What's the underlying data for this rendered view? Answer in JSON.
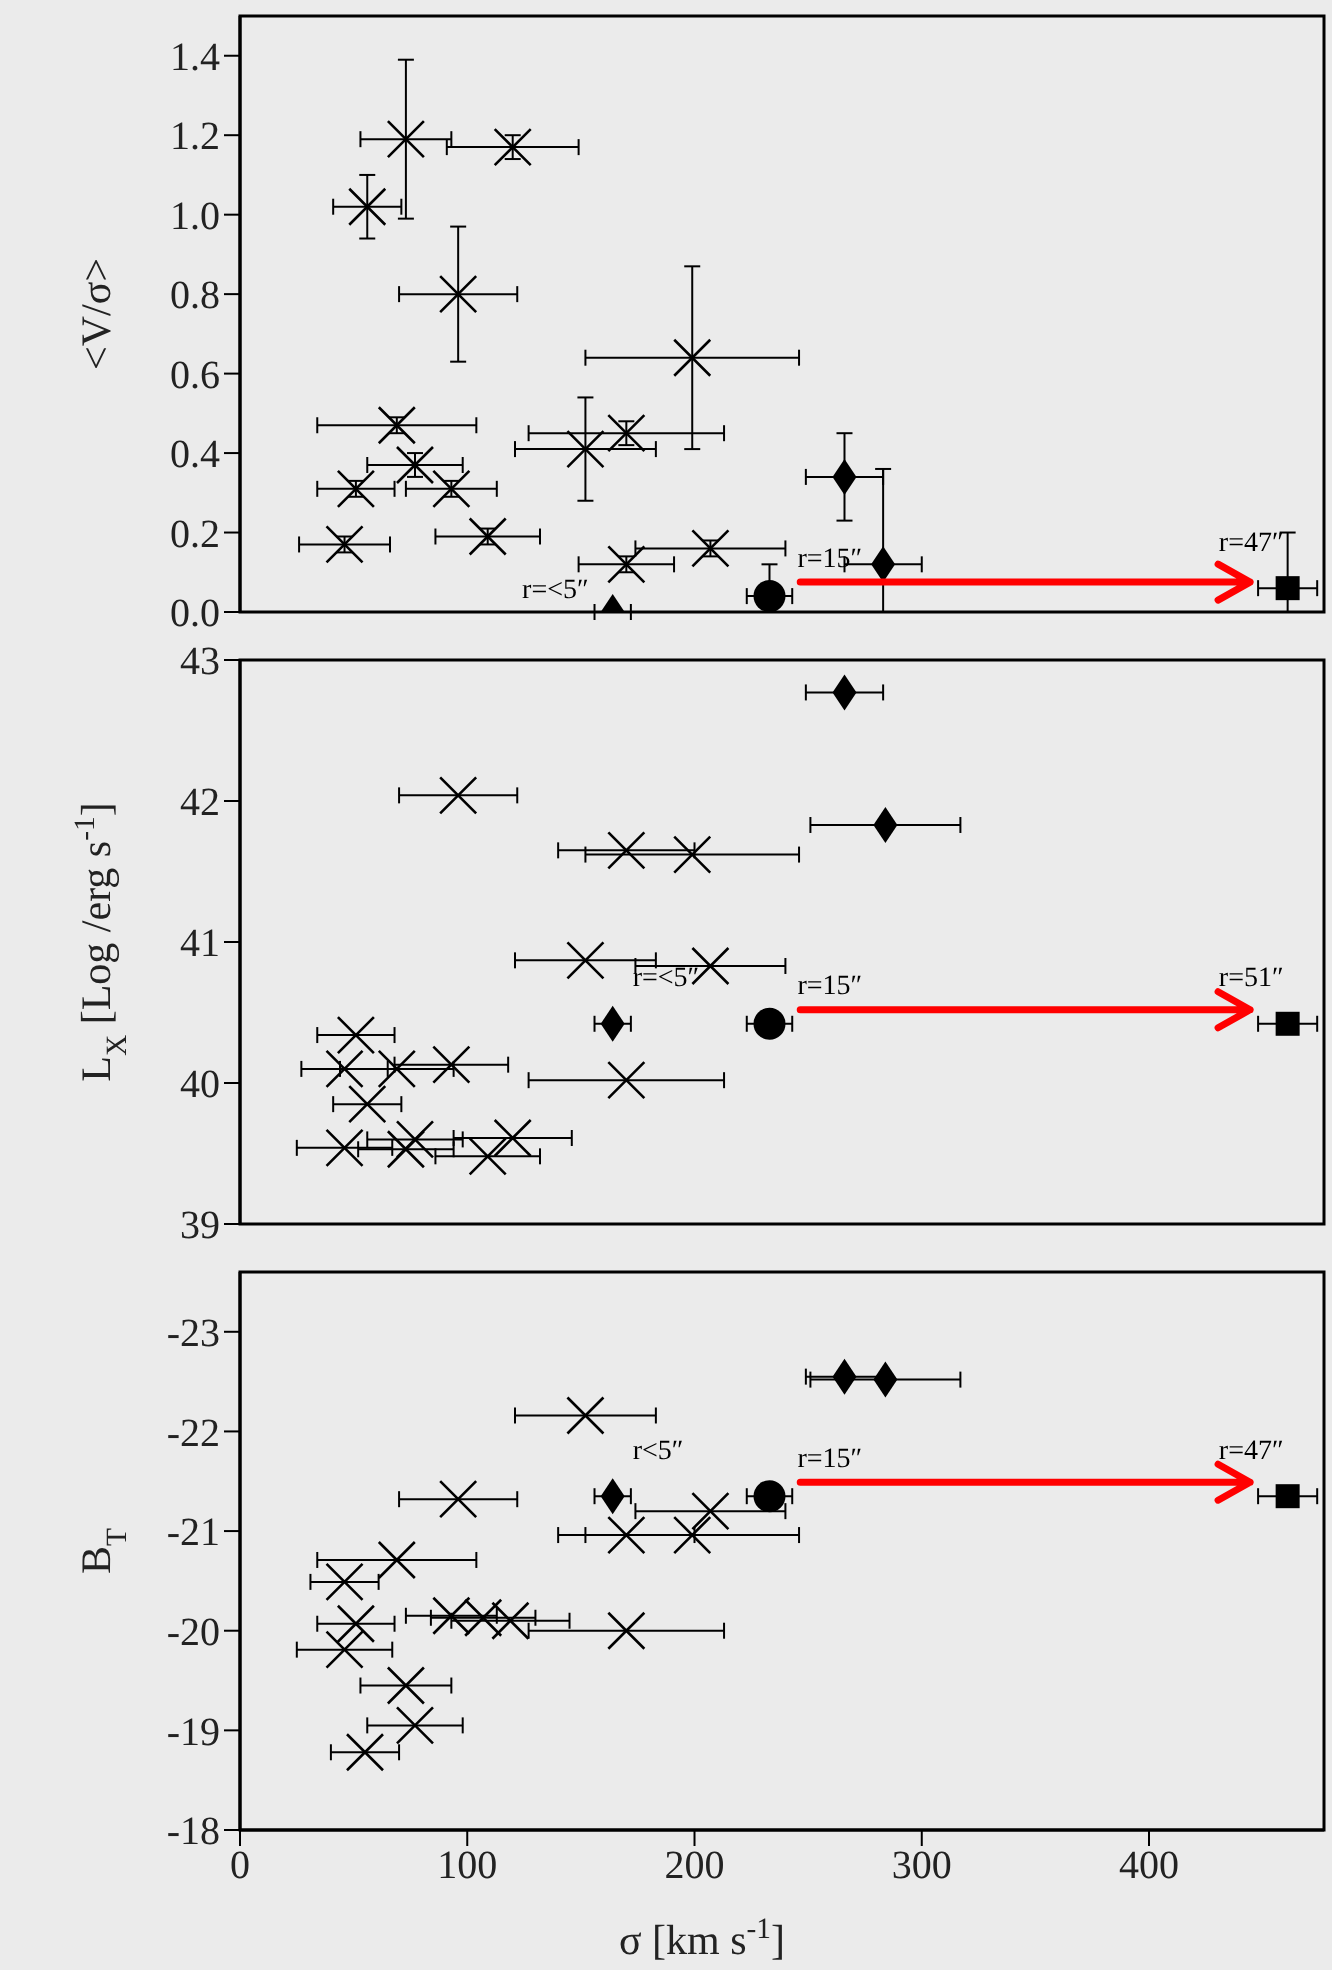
{
  "chart_data": [
    {
      "type": "scatter",
      "ylabel": "<V/σ>",
      "xlim": [
        0,
        477
      ],
      "xticks": [
        0,
        100,
        200,
        300,
        400
      ],
      "ylim": [
        0,
        1.5
      ],
      "yticks": [
        {
          "value": 0,
          "label": "0.0"
        },
        {
          "value": 0.2,
          "label": "0.2"
        },
        {
          "value": 0.4,
          "label": "0.4"
        },
        {
          "value": 0.6,
          "label": "0.6"
        },
        {
          "value": 0.8,
          "label": "0.8"
        },
        {
          "value": 1,
          "label": "1.0"
        },
        {
          "value": 1.2,
          "label": "1.2"
        },
        {
          "value": 1.4,
          "label": "1.4"
        }
      ],
      "tick_labels": "y",
      "series": [
        {
          "marker": "cross",
          "color": "#000000",
          "x": [
            46,
            51,
            56,
            69,
            73,
            77,
            93,
            96,
            109,
            120,
            152,
            170,
            170,
            199,
            207
          ],
          "values": [
            0.17,
            0.31,
            1.02,
            0.47,
            1.19,
            0.37,
            0.31,
            0.8,
            0.19,
            1.17,
            0.41,
            0.45,
            0.12,
            0.64,
            0.16
          ],
          "xerrors": [
            20,
            17,
            15,
            35,
            20,
            21,
            20,
            26,
            23,
            29,
            31,
            43,
            21,
            47,
            33
          ],
          "errors": [
            0.02,
            0.02,
            0.08,
            0.02,
            0.2,
            0.03,
            0.02,
            0.17,
            0.02,
            0.03,
            0.13,
            0.03,
            0.02,
            0.23,
            0.02
          ]
        },
        {
          "marker": "diamond",
          "color": "#000000",
          "x": [
            266,
            283
          ],
          "values": [
            0.34,
            0.12
          ],
          "xerrors": [
            17,
            17
          ],
          "errors": [
            0.11,
            [
              0,
              0.36
            ]
          ]
        },
        {
          "marker": "diamond",
          "color": "#000000",
          "x": [
            164
          ],
          "values": [
            0
          ],
          "xerrors": [
            8
          ],
          "errors": [
            null
          ]
        },
        {
          "marker": "circle",
          "color": "#000000",
          "x": [
            233
          ],
          "values": [
            0.04
          ],
          "xerrors": [
            10
          ],
          "errors": [
            [
              0,
              0.12
            ]
          ]
        },
        {
          "marker": "square",
          "color": "#000000",
          "x": [
            461
          ],
          "values": [
            0.06
          ],
          "xerrors": [
            13
          ],
          "errors": [
            [
              0,
              0.2
            ]
          ]
        }
      ],
      "annotations": [
        "r=<5″",
        "r=15″",
        "r=47″"
      ]
    },
    {
      "type": "scatter",
      "ylabel": "L$_{X}$ [Log /erg s$^{-1}$]",
      "xlim": [
        0,
        477
      ],
      "xticks": [
        0,
        100,
        200,
        300,
        400
      ],
      "ylim": [
        39,
        43
      ],
      "yticks": [
        39,
        40,
        41,
        42,
        43
      ],
      "tick_labels": "y",
      "series": [
        {
          "marker": "cross",
          "color": "#000000",
          "x": [
            46,
            46,
            51,
            56,
            69,
            73,
            77,
            93,
            96,
            109,
            120,
            152,
            170,
            170,
            199,
            207
          ],
          "values": [
            39.54,
            40.1,
            40.34,
            39.85,
            40.1,
            39.53,
            39.6,
            40.13,
            42.04,
            39.48,
            39.61,
            40.87,
            41.65,
            40.02,
            41.62,
            40.83
          ],
          "xerrors": [
            21,
            19,
            17,
            15,
            25,
            21,
            21,
            25,
            26,
            23,
            26,
            31,
            30,
            43,
            47,
            33
          ]
        },
        {
          "marker": "diamond",
          "color": "#000000",
          "x": [
            266,
            284
          ],
          "values": [
            42.77,
            41.83
          ],
          "xerrors": [
            17,
            33
          ]
        },
        {
          "marker": "diamond",
          "color": "#000000",
          "x": [
            164
          ],
          "values": [
            40.42
          ],
          "xerrors": [
            8
          ]
        },
        {
          "marker": "circle",
          "color": "#000000",
          "x": [
            233
          ],
          "values": [
            40.42
          ],
          "xerrors": [
            10
          ]
        },
        {
          "marker": "square",
          "color": "#000000",
          "x": [
            461
          ],
          "values": [
            40.42
          ],
          "xerrors": [
            13
          ]
        }
      ],
      "annotations": [
        "r=<5″",
        "r=15″",
        "r=51″"
      ]
    },
    {
      "type": "scatter",
      "xlabel": "σ [km s$^{-1}$]",
      "ylabel": "B$_{T}$",
      "xlim": [
        0,
        477
      ],
      "xticks": [
        0,
        100,
        200,
        300,
        400
      ],
      "ylim": [
        -18,
        -23.6
      ],
      "yticks": [
        -18,
        -19,
        -20,
        -21,
        -22,
        -23
      ],
      "series": [
        {
          "marker": "cross",
          "color": "#000000",
          "x": [
            55,
            77,
            73,
            46,
            51,
            46,
            69,
            93,
            107,
            119,
            96,
            152,
            170,
            199,
            170,
            207
          ],
          "values": [
            -18.78,
            -19.05,
            -19.45,
            -19.81,
            -20.07,
            -20.49,
            -20.71,
            -20.15,
            -20.13,
            -20.1,
            -21.32,
            -22.16,
            -20.96,
            -20.96,
            -20,
            -21.2
          ],
          "xerrors": [
            15,
            21,
            20,
            21,
            17,
            15,
            35,
            20,
            23,
            26,
            26,
            31,
            30,
            47,
            43,
            33
          ]
        },
        {
          "marker": "diamond",
          "color": "#000000",
          "x": [
            266,
            284
          ],
          "values": [
            -22.55,
            -22.52
          ],
          "xerrors": [
            17,
            33
          ]
        },
        {
          "marker": "diamond",
          "color": "#000000",
          "x": [
            164
          ],
          "values": [
            -21.35
          ],
          "xerrors": [
            8
          ]
        },
        {
          "marker": "circle",
          "color": "#000000",
          "x": [
            233
          ],
          "values": [
            -21.35
          ],
          "xerrors": [
            10
          ]
        },
        {
          "marker": "square",
          "color": "#000000",
          "x": [
            461
          ],
          "values": [
            -21.35
          ],
          "xerrors": [
            13
          ]
        }
      ],
      "annotations": [
        "r<5″",
        "r=15″",
        "r=47″"
      ]
    }
  ]
}
